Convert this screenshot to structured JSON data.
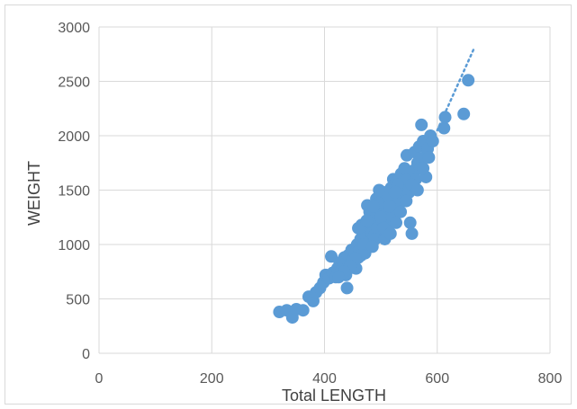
{
  "chart_data": {
    "type": "scatter",
    "title": "",
    "xlabel": "Total LENGTH",
    "ylabel": "WEIGHT",
    "xlim": [
      0,
      800
    ],
    "ylim": [
      0,
      3000
    ],
    "x_ticks": [
      0,
      200,
      400,
      600,
      800
    ],
    "y_ticks": [
      0,
      500,
      1000,
      1500,
      2000,
      2500,
      3000
    ],
    "grid": true,
    "legend": "none",
    "colors": {
      "marker": "#5b9bd5",
      "trendline": "#5b9bd5",
      "grid": "#d9d9d9",
      "tick_text": "#595959",
      "axis_title_text": "#404040"
    },
    "trendline": {
      "style": "dotted",
      "x_range": [
        600,
        665
      ],
      "y_range": [
        2050,
        2800
      ]
    },
    "series": [
      {
        "values": [
          [
            320,
            380
          ],
          [
            333,
            395
          ],
          [
            343,
            330
          ],
          [
            350,
            405
          ],
          [
            362,
            395
          ],
          [
            372,
            520
          ],
          [
            380,
            480
          ],
          [
            385,
            560
          ],
          [
            392,
            600
          ],
          [
            398,
            650
          ],
          [
            402,
            720
          ],
          [
            408,
            690
          ],
          [
            412,
            890
          ],
          [
            415,
            740
          ],
          [
            420,
            700
          ],
          [
            423,
            780
          ],
          [
            427,
            830
          ],
          [
            430,
            760
          ],
          [
            432,
            850
          ],
          [
            435,
            880
          ],
          [
            438,
            720
          ],
          [
            440,
            600
          ],
          [
            442,
            900
          ],
          [
            444,
            780
          ],
          [
            446,
            820
          ],
          [
            448,
            950
          ],
          [
            450,
            850
          ],
          [
            452,
            880
          ],
          [
            454,
            920
          ],
          [
            456,
            780
          ],
          [
            458,
            1000
          ],
          [
            460,
            880
          ],
          [
            462,
            950
          ],
          [
            464,
            1050
          ],
          [
            466,
            1180
          ],
          [
            468,
            1000
          ],
          [
            470,
            1120
          ],
          [
            472,
            920
          ],
          [
            474,
            1080
          ],
          [
            476,
            1360
          ],
          [
            478,
            1150
          ],
          [
            480,
            1020
          ],
          [
            482,
            1200
          ],
          [
            484,
            1100
          ],
          [
            486,
            1280
          ],
          [
            488,
            1080
          ],
          [
            490,
            1250
          ],
          [
            492,
            1420
          ],
          [
            494,
            1150
          ],
          [
            496,
            1300
          ],
          [
            498,
            1100
          ],
          [
            500,
            1350
          ],
          [
            502,
            1220
          ],
          [
            504,
            1480
          ],
          [
            506,
            1180
          ],
          [
            508,
            1400
          ],
          [
            510,
            1250
          ],
          [
            512,
            1320
          ],
          [
            514,
            1450
          ],
          [
            516,
            1200
          ],
          [
            518,
            1520
          ],
          [
            520,
            1380
          ],
          [
            522,
            1600
          ],
          [
            524,
            1300
          ],
          [
            526,
            1450
          ],
          [
            528,
            1580
          ],
          [
            530,
            1350
          ],
          [
            532,
            1500
          ],
          [
            534,
            1420
          ],
          [
            536,
            1650
          ],
          [
            538,
            1480
          ],
          [
            540,
            1580
          ],
          [
            542,
            1700
          ],
          [
            544,
            1550
          ],
          [
            546,
            1820
          ],
          [
            548,
            1600
          ],
          [
            550,
            1480
          ],
          [
            552,
            1200
          ],
          [
            555,
            1100
          ],
          [
            558,
            1680
          ],
          [
            560,
            1850
          ],
          [
            562,
            1600
          ],
          [
            565,
            1750
          ],
          [
            568,
            1900
          ],
          [
            570,
            1700
          ],
          [
            572,
            2100
          ],
          [
            575,
            1950
          ],
          [
            578,
            1800
          ],
          [
            580,
            1620
          ],
          [
            583,
            1880
          ],
          [
            588,
            2000
          ],
          [
            592,
            1950
          ],
          [
            612,
            2070
          ],
          [
            614,
            2170
          ],
          [
            647,
            2200
          ],
          [
            655,
            2510
          ],
          [
            460,
            1150
          ],
          [
            470,
            1000
          ],
          [
            480,
            1300
          ],
          [
            490,
            1050
          ],
          [
            500,
            1250
          ],
          [
            510,
            1450
          ],
          [
            520,
            1250
          ],
          [
            530,
            1550
          ],
          [
            495,
            1380
          ],
          [
            505,
            1150
          ],
          [
            515,
            1350
          ],
          [
            525,
            1480
          ],
          [
            485,
            980
          ],
          [
            475,
            1220
          ],
          [
            465,
            900
          ],
          [
            455,
            870
          ],
          [
            445,
            800
          ],
          [
            435,
            750
          ],
          [
            425,
            700
          ],
          [
            545,
            1400
          ],
          [
            535,
            1300
          ],
          [
            555,
            1550
          ],
          [
            565,
            1500
          ],
          [
            575,
            1700
          ],
          [
            585,
            1800
          ],
          [
            507,
            1050
          ],
          [
            517,
            1100
          ],
          [
            527,
            1200
          ],
          [
            497,
            1500
          ],
          [
            487,
            1350
          ]
        ]
      }
    ]
  }
}
